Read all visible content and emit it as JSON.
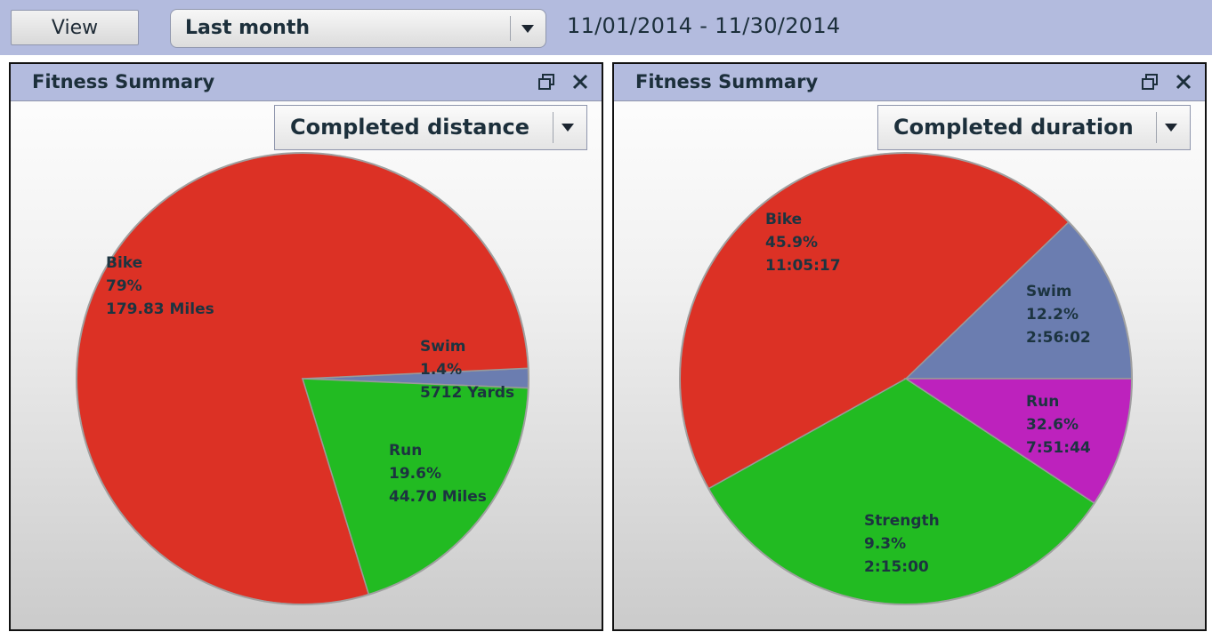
{
  "toolbar": {
    "view_label": "View",
    "range_select": "Last month",
    "date_range": "11/01/2014 - 11/30/2014"
  },
  "panels": [
    {
      "title": "Fitness Summary",
      "metric_select": "Completed distance"
    },
    {
      "title": "Fitness Summary",
      "metric_select": "Completed duration"
    }
  ],
  "chart_data": [
    {
      "type": "pie",
      "title": "",
      "slices": [
        {
          "name": "Bike",
          "percent": 79,
          "percent_label": "79%",
          "value_label": "179.83 Miles",
          "color": "#dc3125"
        },
        {
          "name": "Swim",
          "percent": 1.4,
          "percent_label": "1.4%",
          "value_label": "5712 Yards",
          "color": "#6b7db0"
        },
        {
          "name": "Run",
          "percent": 19.6,
          "percent_label": "19.6%",
          "value_label": "44.70 Miles",
          "color": "#22bb22"
        }
      ]
    },
    {
      "type": "pie",
      "title": "",
      "slices": [
        {
          "name": "Bike",
          "percent": 45.9,
          "percent_label": "45.9%",
          "value_label": "11:05:17",
          "color": "#dc3125"
        },
        {
          "name": "Swim",
          "percent": 12.2,
          "percent_label": "12.2%",
          "value_label": "2:56:02",
          "color": "#6b7db0"
        },
        {
          "name": "Strength",
          "percent": 9.3,
          "percent_label": "9.3%",
          "value_label": "2:15:00",
          "color": "#bd22bd"
        },
        {
          "name": "Run",
          "percent": 32.6,
          "percent_label": "32.6%",
          "value_label": "7:51:44",
          "color": "#22bb22"
        }
      ]
    }
  ]
}
